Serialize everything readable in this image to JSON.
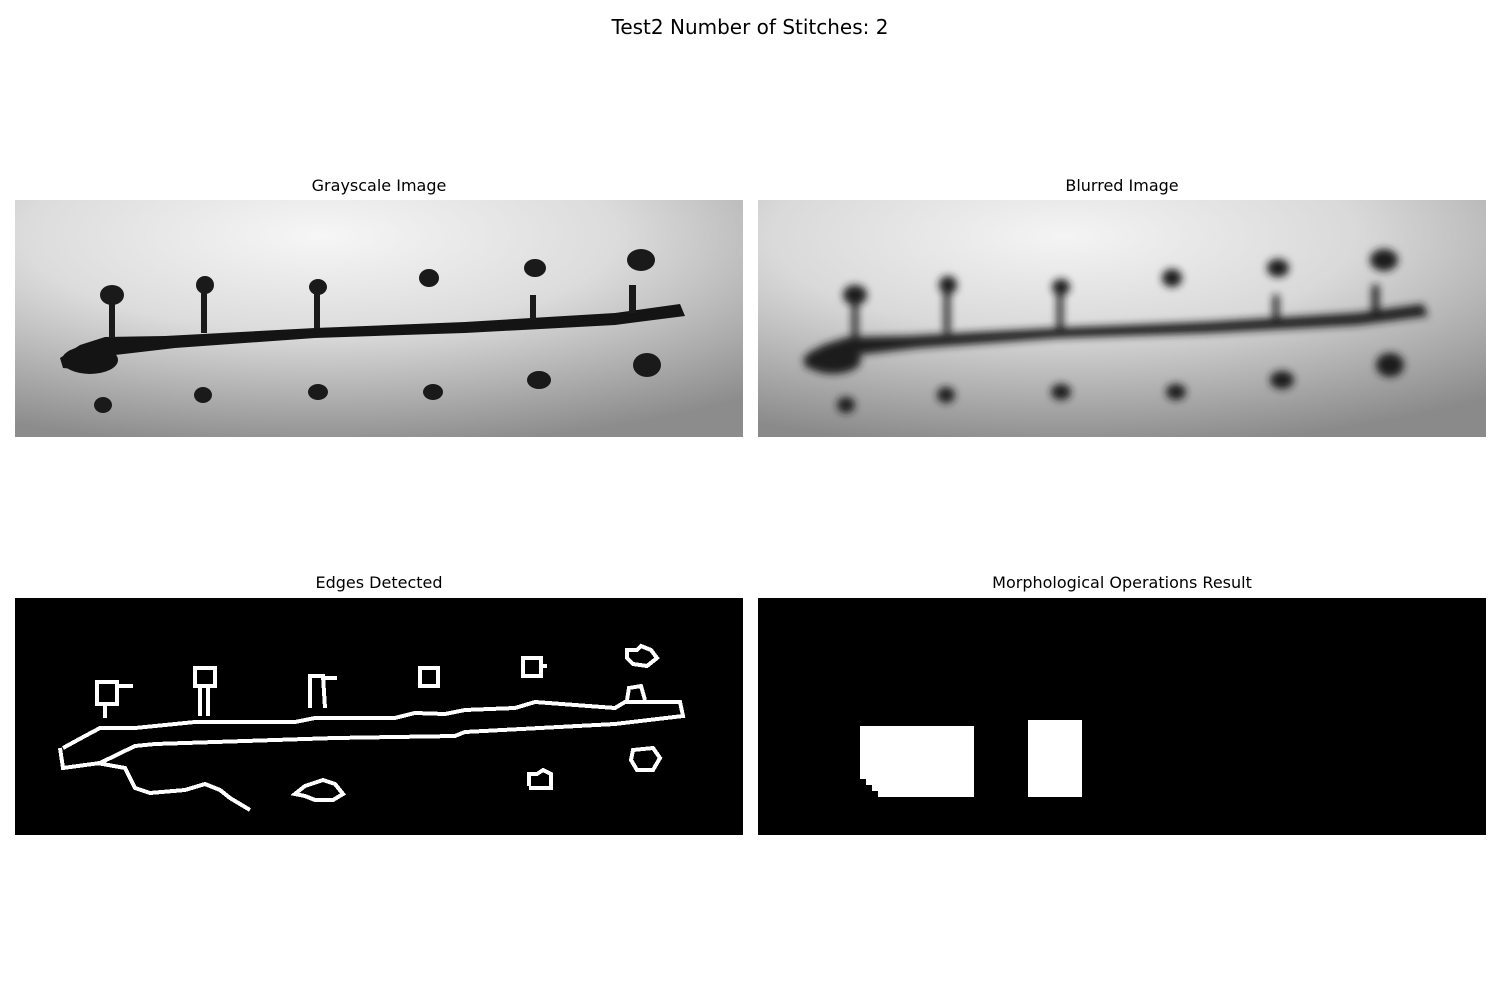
{
  "figure": {
    "title": "Test2 Number of Stitches: 2"
  },
  "panels": [
    {
      "title": "Grayscale Image",
      "kind": "grayscale"
    },
    {
      "title": "Blurred Image",
      "kind": "blurred"
    },
    {
      "title": "Edges Detected",
      "kind": "edges"
    },
    {
      "title": "Morphological Operations Result",
      "kind": "morphology"
    }
  ],
  "colors": {
    "background": "#ffffff",
    "mask_background": "#000000",
    "mask_foreground": "#ffffff"
  }
}
